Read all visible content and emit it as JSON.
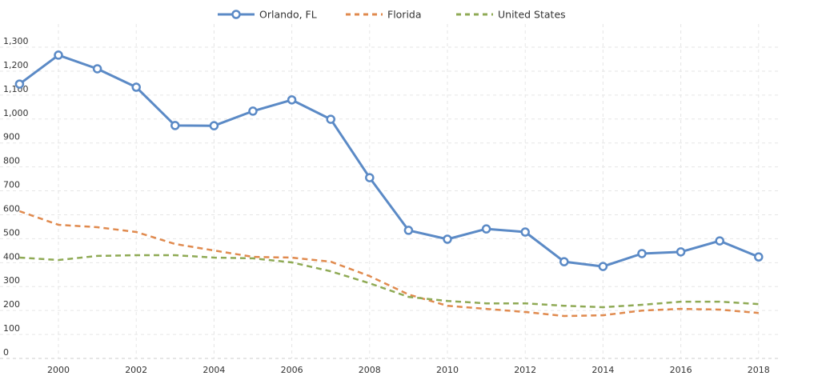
{
  "chart_data": {
    "type": "line",
    "title": "",
    "xlabel": "",
    "ylabel": "",
    "xlim": [
      1999,
      2018.5
    ],
    "ylim": [
      0,
      1350
    ],
    "grid": true,
    "legend_position": "top-center",
    "x_ticks": [
      "2000",
      "2002",
      "2004",
      "2006",
      "2008",
      "2010",
      "2012",
      "2014",
      "2016",
      "2018"
    ],
    "y_ticks": [
      "0",
      "100",
      "200",
      "300",
      "400",
      "500",
      "600",
      "700",
      "800",
      "900",
      "1,000",
      "1,100",
      "1,200",
      "1,300"
    ],
    "x": [
      1999,
      2000,
      2001,
      2002,
      2003,
      2004,
      2005,
      2006,
      2007,
      2008,
      2009,
      2010,
      2011,
      2012,
      2013,
      2014,
      2015,
      2016,
      2017,
      2018
    ],
    "series": [
      {
        "name": "Orlando, FL",
        "color": "#5b8ac6",
        "style": "solid-markers",
        "values": [
          1146,
          1267,
          1210,
          1133,
          973,
          972,
          1033,
          1080,
          999,
          755,
          535,
          498,
          541,
          528,
          404,
          384,
          438,
          445,
          491,
          424
        ]
      },
      {
        "name": "Florida",
        "color": "#e08a4e",
        "style": "dashed",
        "values": [
          615,
          558,
          548,
          528,
          478,
          451,
          424,
          421,
          404,
          344,
          267,
          220,
          207,
          194,
          177,
          180,
          200,
          207,
          204,
          190
        ]
      },
      {
        "name": "United States",
        "color": "#8faa55",
        "style": "dashed",
        "values": [
          421,
          411,
          428,
          431,
          431,
          421,
          418,
          401,
          364,
          314,
          257,
          240,
          230,
          230,
          220,
          214,
          224,
          237,
          237,
          227
        ]
      }
    ]
  }
}
